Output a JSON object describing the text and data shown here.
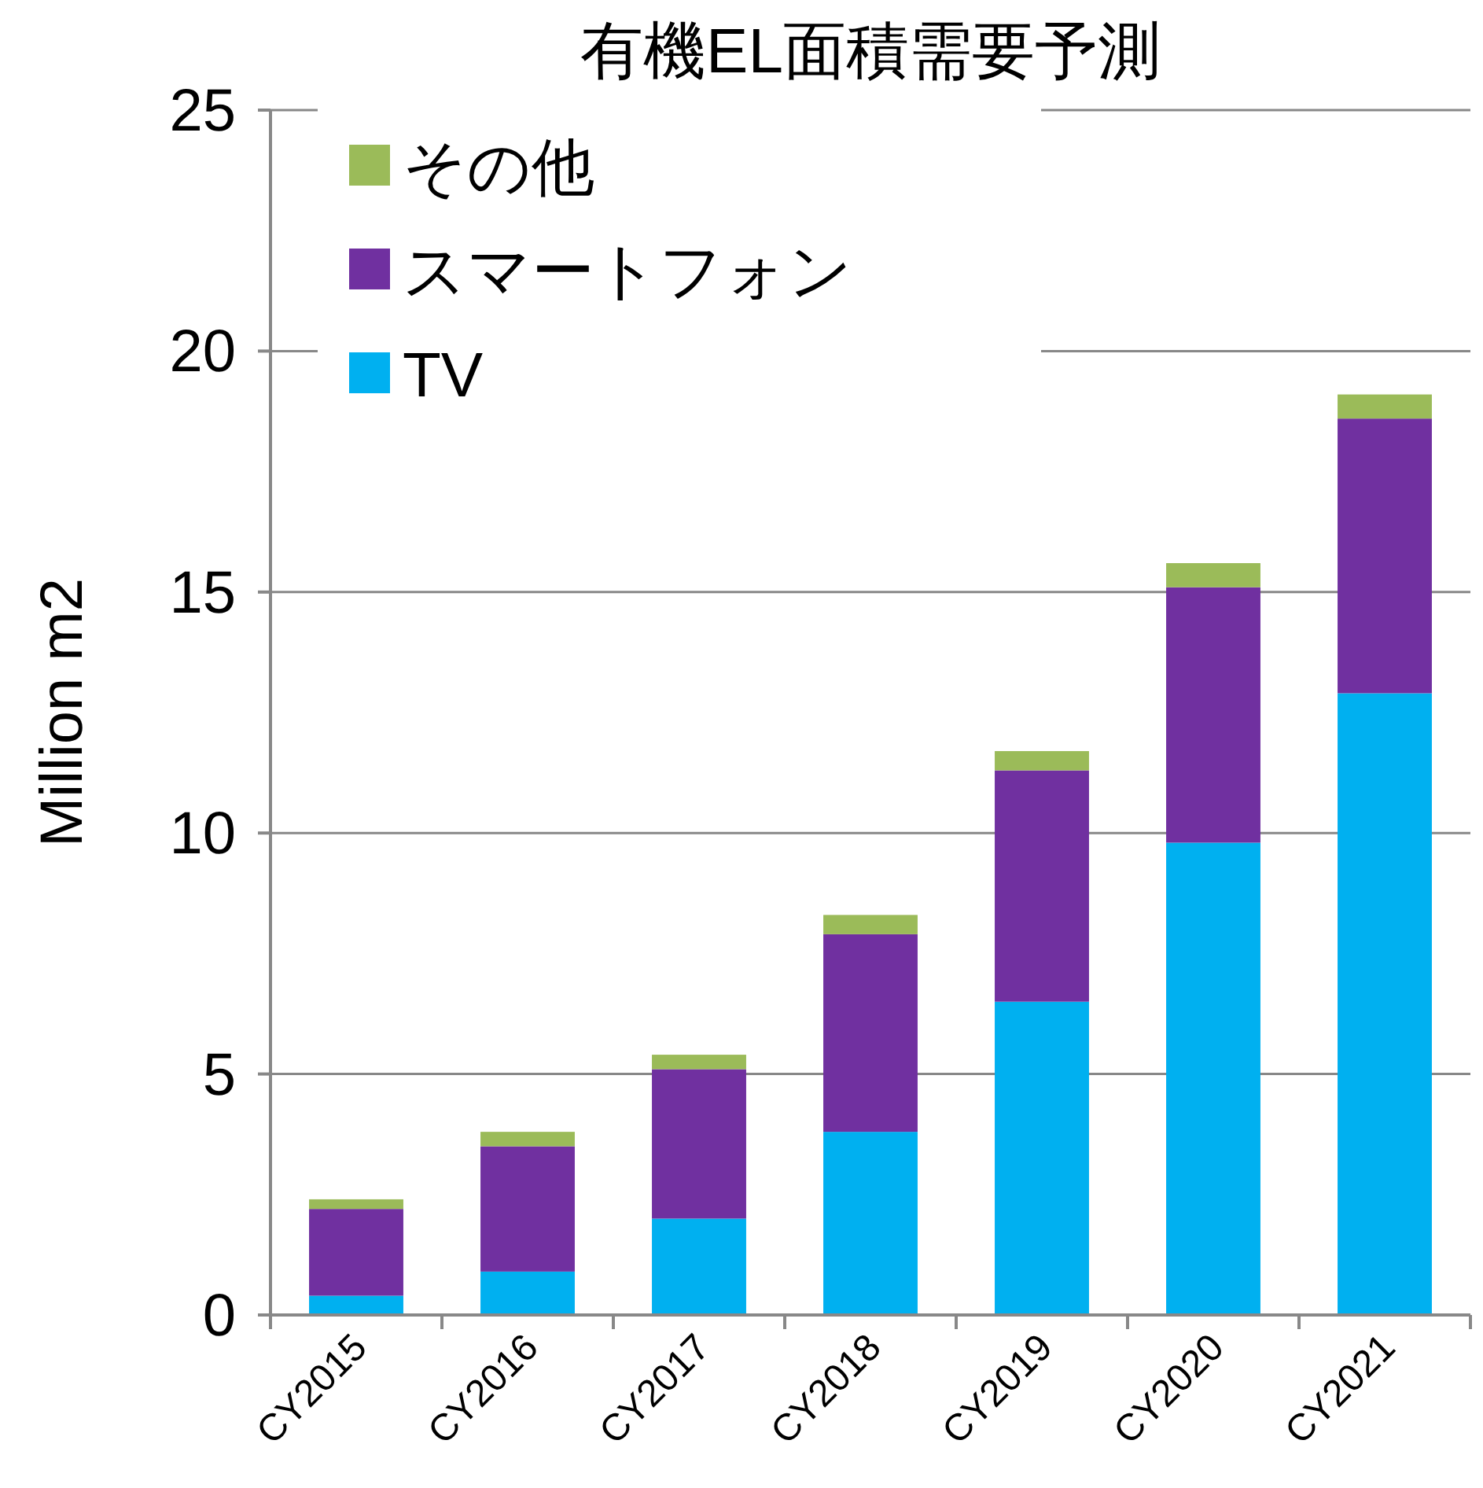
{
  "chart_data": {
    "type": "bar",
    "title": "有機EL面積需要予測",
    "ylabel": "Million m2",
    "categories": [
      "CY2015",
      "CY2016",
      "CY2017",
      "CY2018",
      "CY2019",
      "CY2020",
      "CY2021"
    ],
    "stacked": true,
    "series": [
      {
        "name": "TV",
        "color": "#00b0f0",
        "values": [
          0.4,
          0.9,
          2.0,
          3.8,
          6.5,
          9.8,
          12.9
        ]
      },
      {
        "name": "スマートフォン",
        "color": "#7030a0",
        "values": [
          1.8,
          2.6,
          3.1,
          4.1,
          4.8,
          5.3,
          5.7
        ]
      },
      {
        "name": "その他",
        "color": "#9bbb59",
        "values": [
          0.2,
          0.3,
          0.3,
          0.4,
          0.4,
          0.5,
          0.5
        ]
      }
    ],
    "ylim": [
      0,
      25
    ],
    "yticks": [
      0,
      5,
      10,
      15,
      20,
      25
    ],
    "grid": "y",
    "legend": "top left"
  }
}
